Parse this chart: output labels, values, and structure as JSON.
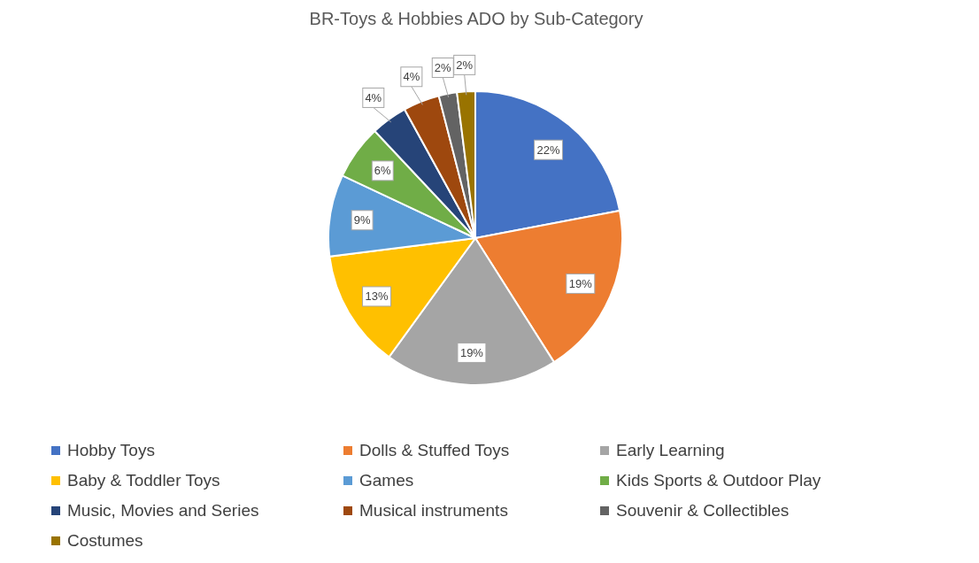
{
  "chart_data": {
    "type": "pie",
    "title": "BR-Toys & Hobbies ADO by Sub-Category",
    "categories": [
      "Hobby Toys",
      "Dolls & Stuffed Toys",
      "Early Learning",
      "Baby & Toddler Toys",
      "Games",
      "Kids Sports & Outdoor Play",
      "Music, Movies and Series",
      "Musical instruments",
      "Souvenir & Collectibles",
      "Costumes"
    ],
    "values": [
      22,
      19,
      19,
      13,
      9,
      6,
      4,
      4,
      2,
      2
    ],
    "value_labels": [
      "22%",
      "19%",
      "19%",
      "13%",
      "9%",
      "6%",
      "4%",
      "4%",
      "2%",
      "2%"
    ],
    "colors": [
      "#4472c4",
      "#ed7d31",
      "#a5a5a5",
      "#ffc000",
      "#5b9bd5",
      "#70ad47",
      "#264478",
      "#9e480e",
      "#636363",
      "#997300"
    ],
    "legend": "bottom"
  }
}
